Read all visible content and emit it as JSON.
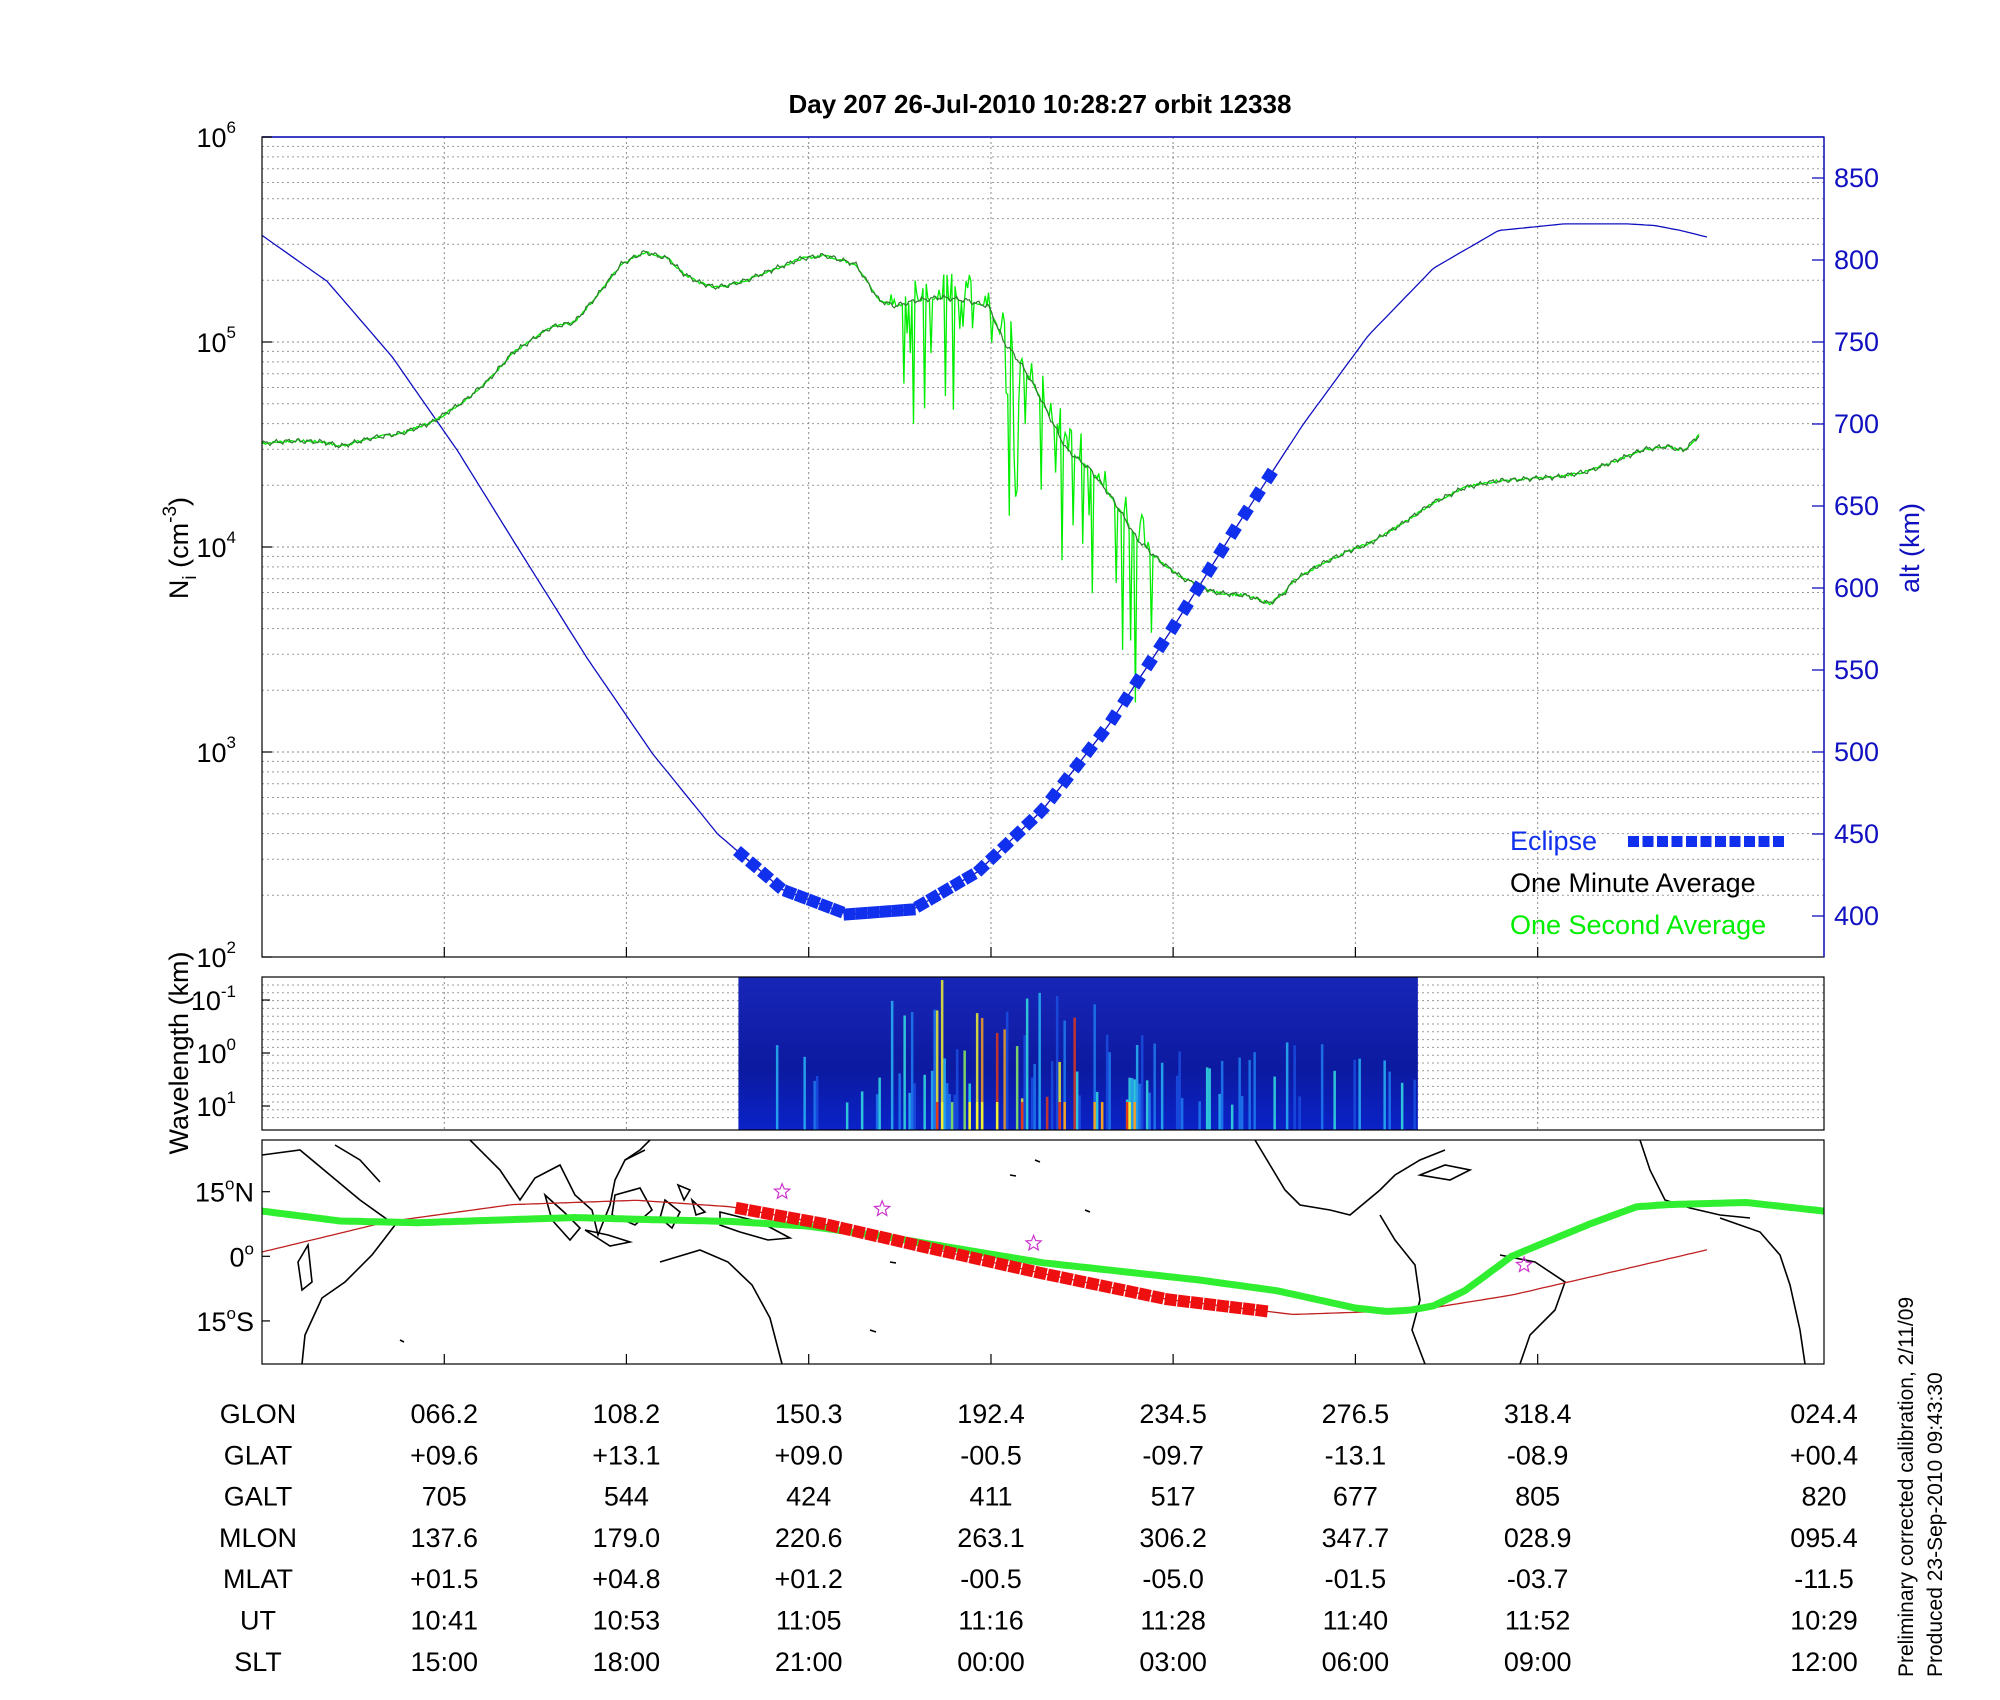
{
  "title": "Day 207  26-Jul-2010 10:28:27   orbit 12338",
  "colors": {
    "density": "#2f7a2f",
    "density_1s": "#00ee00",
    "altitude": "#1010c0",
    "eclipse": "#1030ee",
    "track": "#30ee30",
    "eclipse_track": "#ee1010",
    "orbit_trace": "#c02020",
    "star": "#cc33cc"
  },
  "chart_data": [
    {
      "type": "line",
      "panel": "density",
      "y_axis_label": {
        "main": "N",
        "sub": "i",
        "rest": " (cm",
        "sup": "-3",
        "close": ")"
      },
      "y_scale": "log",
      "ylim": [
        100,
        1000000
      ],
      "y_ticks": [
        {
          "base": "10",
          "exp": "2",
          "value": 100
        },
        {
          "base": "10",
          "exp": "3",
          "value": 1000
        },
        {
          "base": "10",
          "exp": "4",
          "value": 10000
        },
        {
          "base": "10",
          "exp": "5",
          "value": 100000
        },
        {
          "base": "10",
          "exp": "6",
          "value": 1000000
        }
      ],
      "y2_label": "alt (km)",
      "y2lim": [
        375,
        875
      ],
      "y2_ticks": [
        "400",
        "450",
        "500",
        "550",
        "600",
        "650",
        "700",
        "750",
        "800",
        "850"
      ],
      "x_frac_ticks": [
        0.1167,
        0.2333,
        0.35,
        0.4667,
        0.5833,
        0.7,
        0.8167
      ],
      "legend": {
        "position": "bottom-right",
        "entries": [
          {
            "label": "Eclipse",
            "color": "#1030ee"
          },
          {
            "label": "One Minute Average",
            "color": "#000000"
          },
          {
            "label": "One Second Average",
            "color": "#00ee00"
          }
        ]
      },
      "series": [
        {
          "label": "One Minute Average",
          "x": [
            0.0,
            0.02,
            0.04,
            0.05,
            0.07,
            0.09,
            0.11,
            0.13,
            0.145,
            0.16,
            0.175,
            0.185,
            0.2,
            0.215,
            0.23,
            0.245,
            0.26,
            0.27,
            0.28,
            0.29,
            0.3,
            0.31,
            0.32,
            0.33,
            0.345,
            0.36,
            0.38,
            0.395,
            0.405,
            0.42,
            0.435,
            0.45,
            0.465,
            0.475,
            0.485,
            0.495,
            0.505,
            0.515,
            0.53,
            0.545,
            0.56,
            0.575,
            0.59,
            0.61,
            0.63,
            0.645,
            0.655,
            0.66,
            0.67,
            0.68,
            0.695,
            0.71,
            0.73,
            0.75,
            0.77,
            0.79,
            0.81,
            0.83,
            0.85,
            0.87,
            0.885,
            0.9,
            0.91,
            0.92
          ],
          "y": [
            32000,
            33000,
            32500,
            31000,
            34000,
            36000,
            41000,
            52000,
            65000,
            88000,
            105000,
            118000,
            125000,
            170000,
            240000,
            275000,
            255000,
            215000,
            195000,
            185000,
            190000,
            200000,
            215000,
            230000,
            255000,
            265000,
            240000,
            160000,
            150000,
            160000,
            165000,
            160000,
            150000,
            100000,
            80000,
            60000,
            42000,
            30000,
            24000,
            17000,
            11000,
            8500,
            7000,
            6000,
            5800,
            5300,
            6000,
            6800,
            7600,
            8400,
            9500,
            10500,
            13000,
            16500,
            19500,
            21000,
            21500,
            22000,
            23500,
            27000,
            30000,
            31000,
            29500,
            35000
          ]
        },
        {
          "label": "Altitude",
          "x": [
            0.0,
            0.0417,
            0.0833,
            0.125,
            0.1667,
            0.2083,
            0.25,
            0.2917,
            0.3333,
            0.375,
            0.4167,
            0.4583,
            0.5,
            0.5417,
            0.5833,
            0.625,
            0.6667,
            0.7083,
            0.75,
            0.7917,
            0.8333,
            0.875,
            0.8917,
            0.9083,
            0.925
          ],
          "y": [
            815,
            787,
            741,
            684,
            620,
            557,
            499,
            450,
            416,
            401,
            404,
            427,
            465,
            516,
            576,
            639,
            700,
            754,
            795,
            818,
            822,
            822,
            821,
            818,
            814
          ]
        }
      ],
      "eclipse_x_range": [
        0.307,
        0.645
      ]
    },
    {
      "type": "heatmap",
      "panel": "spectrogram",
      "y_axis_label": "Wavelength (km)",
      "y_ticks": [
        {
          "base": "10",
          "exp": "-1"
        },
        {
          "base": "10",
          "exp": "0"
        },
        {
          "base": "10",
          "exp": "1"
        }
      ],
      "x_range": [
        0.305,
        0.74
      ]
    },
    {
      "type": "line",
      "panel": "map",
      "y_ticks": [
        {
          "num": "15",
          "deg": "o",
          "dir": "N",
          "value": 15
        },
        {
          "num": "0",
          "deg": "o",
          "dir": "",
          "value": 0
        },
        {
          "num": "15",
          "deg": "o",
          "dir": "S",
          "value": -15
        }
      ],
      "ylim": [
        -25,
        27
      ],
      "series": [
        {
          "label": "Ground track",
          "x": [
            0.0,
            0.05,
            0.1,
            0.15,
            0.2,
            0.25,
            0.3,
            0.35,
            0.4,
            0.45,
            0.5,
            0.55,
            0.6,
            0.65,
            0.7,
            0.72,
            0.735,
            0.75,
            0.77,
            0.8,
            0.85,
            0.88,
            0.9,
            0.95,
            1.0
          ],
          "y": [
            10.5,
            8.2,
            7.8,
            8.4,
            9.0,
            8.5,
            8.1,
            7.0,
            4.5,
            1.5,
            -1.5,
            -3.5,
            -5.5,
            -8.0,
            -12.0,
            -12.8,
            -12.5,
            -11.5,
            -8.0,
            0.0,
            7.5,
            11.5,
            12.0,
            12.5,
            10.5
          ]
        },
        {
          "label": "Orbit trace",
          "x": [
            0.0,
            0.08,
            0.16,
            0.24,
            0.3,
            0.36,
            0.42,
            0.5,
            0.58,
            0.66,
            0.74,
            0.8,
            0.86,
            0.925
          ],
          "y": [
            1.0,
            8.0,
            12.0,
            13.0,
            11.5,
            7.5,
            2.5,
            -4.0,
            -10.0,
            -13.5,
            -12.5,
            -9.0,
            -4.0,
            1.5
          ]
        }
      ],
      "eclipse_x_range": [
        0.307,
        0.64
      ],
      "stars": [
        {
          "x": 0.333,
          "y": 15.0
        },
        {
          "x": 0.397,
          "y": 11.0
        },
        {
          "x": 0.494,
          "y": 3.0
        },
        {
          "x": 0.808,
          "y": -2.0
        }
      ]
    }
  ],
  "orbit_table": {
    "rows": [
      {
        "label": "GLON",
        "values": [
          "066.2",
          "108.2",
          "150.3",
          "192.4",
          "234.5",
          "276.5",
          "318.4",
          "024.4"
        ]
      },
      {
        "label": "GLAT",
        "values": [
          "+09.6",
          "+13.1",
          "+09.0",
          "-00.5",
          "-09.7",
          "-13.1",
          "-08.9",
          "+00.4"
        ]
      },
      {
        "label": "GALT",
        "values": [
          "705",
          "544",
          "424",
          "411",
          "517",
          "677",
          "805",
          "820"
        ]
      },
      {
        "label": "MLON",
        "values": [
          "137.6",
          "179.0",
          "220.6",
          "263.1",
          "306.2",
          "347.7",
          "028.9",
          "095.4"
        ]
      },
      {
        "label": "MLAT",
        "values": [
          "+01.5",
          "+04.8",
          "+01.2",
          "-00.5",
          "-05.0",
          "-01.5",
          "-03.7",
          "-11.5"
        ]
      },
      {
        "label": "UT",
        "values": [
          "10:41",
          "10:53",
          "11:05",
          "11:16",
          "11:28",
          "11:40",
          "11:52",
          "10:29"
        ]
      },
      {
        "label": "SLT",
        "values": [
          "15:00",
          "18:00",
          "21:00",
          "00:00",
          "03:00",
          "06:00",
          "09:00",
          "12:00"
        ]
      }
    ]
  },
  "notes": [
    "Preliminary corrected calibration, 2/11/09",
    "Produced 23-Sep-2010 09:43:30"
  ]
}
